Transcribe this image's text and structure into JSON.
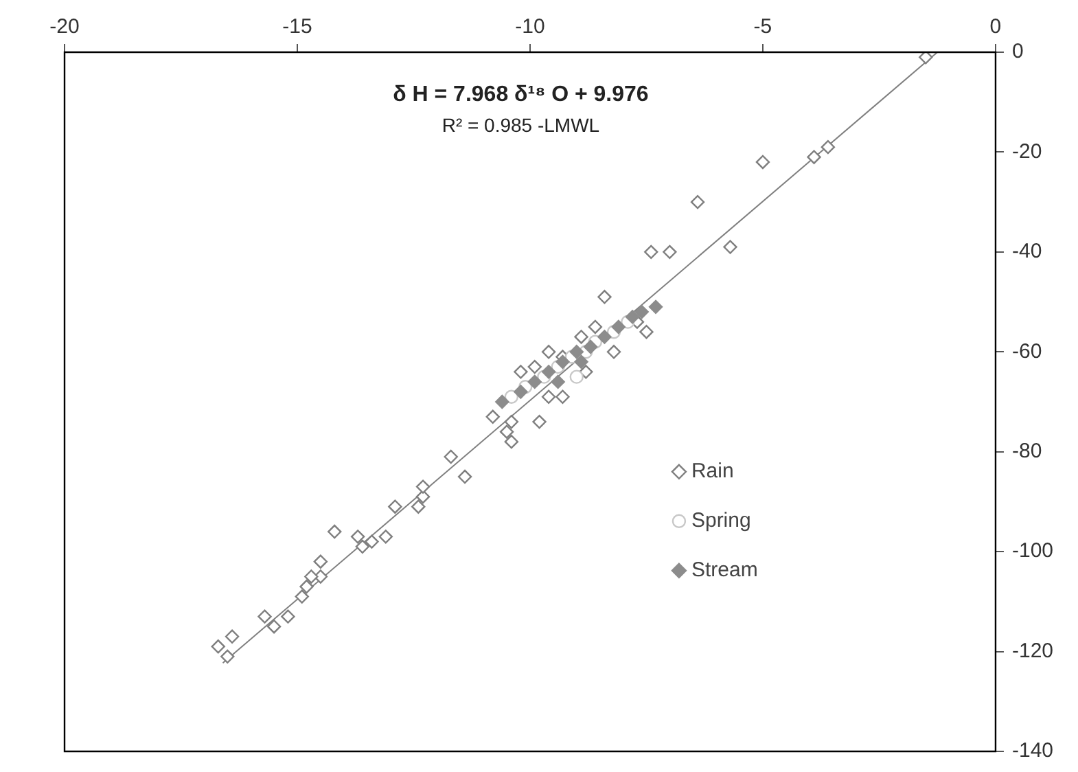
{
  "chart_data": {
    "type": "scatter",
    "annotations": [
      "δ H = 7.968 δ¹⁸ O + 9.976",
      "R² = 0.985 -LMWL"
    ],
    "xlim": [
      -20,
      0
    ],
    "xticks": [
      -20,
      -15,
      -10,
      -5,
      0
    ],
    "ylim": [
      -140,
      0
    ],
    "yticks": [
      0,
      -20,
      -40,
      -60,
      -80,
      -100,
      -120,
      -140
    ],
    "grid": false,
    "legend": "right",
    "series": [
      {
        "name": "Rain",
        "color": "#7f7f7f",
        "marker": "diamond",
        "x": [
          -1.5,
          -3.6,
          -3.9,
          -5.0,
          -6.4,
          -7.4,
          -7.0,
          -5.7,
          -8.4,
          -7.5,
          -16.5,
          -16.7,
          -16.4,
          -15.7,
          -15.5,
          -15.2,
          -14.9,
          -14.8,
          -14.5,
          -14.5,
          -14.7,
          -14.2,
          -13.7,
          -13.6,
          -13.4,
          -13.1,
          -12.9,
          -12.4,
          -12.3,
          -12.3,
          -11.7,
          -11.4,
          -10.8,
          -10.4,
          -10.5,
          -10.4,
          -9.8,
          -9.6,
          -10.2,
          -9.3,
          -9.3,
          -8.8,
          -9.9,
          -8.6,
          -8.2,
          -7.7,
          -8.9,
          -9.6
        ],
        "values": [
          -1,
          -19,
          -21,
          -22,
          -30,
          -40,
          -40,
          -39,
          -49,
          -56,
          -121,
          -119,
          -117,
          -113,
          -115,
          -113,
          -109,
          -107,
          -105,
          -102,
          -105,
          -96,
          -97,
          -99,
          -98,
          -97,
          -91,
          -91,
          -89,
          -87,
          -81,
          -85,
          -73,
          -74,
          -76,
          -78,
          -74,
          -60,
          -64,
          -69,
          -61,
          -64,
          -63,
          -55,
          -60,
          -54,
          -57,
          -69
        ]
      },
      {
        "name": "Spring",
        "color": "#c8c8c8",
        "marker": "circle",
        "x": [
          -10.4,
          -10.1,
          -9.7,
          -9.4,
          -9.1,
          -8.8,
          -8.6,
          -8.2,
          -7.9,
          -9.0
        ],
        "values": [
          -69,
          -67,
          -65,
          -63,
          -61,
          -60,
          -58,
          -56,
          -54,
          -65
        ]
      },
      {
        "name": "Stream",
        "color": "#8c8c8c",
        "marker": "diamond",
        "x": [
          -10.6,
          -10.2,
          -9.9,
          -9.6,
          -9.3,
          -9.0,
          -8.7,
          -8.4,
          -8.1,
          -7.8,
          -7.6,
          -7.3,
          -9.4,
          -8.9
        ],
        "values": [
          -70,
          -68,
          -66,
          -64,
          -62,
          -60,
          -59,
          -57,
          -55,
          -53,
          -52,
          -51,
          -66,
          -62
        ]
      },
      {
        "type": "line",
        "color": "#7f7f7f",
        "marker": "none",
        "x": [
          -16.6,
          -1.25
        ],
        "values": [
          -122.3,
          0
        ]
      }
    ]
  }
}
